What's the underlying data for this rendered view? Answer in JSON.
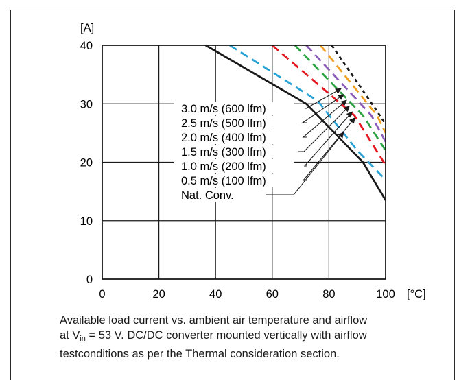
{
  "chart_data": {
    "type": "line",
    "xlabel": "[°C]",
    "ylabel": "[A]",
    "xlim": [
      0,
      100
    ],
    "ylim": [
      0,
      40
    ],
    "x_ticks": [
      "0",
      "20",
      "40",
      "60",
      "80",
      "100"
    ],
    "y_ticks": [
      "0",
      "10",
      "20",
      "30",
      "40"
    ],
    "grid": true,
    "series": [
      {
        "name": "Nat. Conv.",
        "color": "#1a1a1a",
        "dash": "solid",
        "points": [
          [
            36.5,
            40
          ],
          [
            72,
            30
          ],
          [
            92,
            20
          ],
          [
            100,
            13.5
          ]
        ]
      },
      {
        "name": "0.5 m/s (100 lfm)",
        "color": "#29a3d6",
        "dash": "dashed",
        "points": [
          [
            45,
            40
          ],
          [
            76,
            30.5
          ],
          [
            90,
            22
          ],
          [
            100,
            17
          ]
        ]
      },
      {
        "name": "1.0 m/s (200 lfm)",
        "color": "#e4151e",
        "dash": "dashed",
        "points": [
          [
            60,
            40
          ],
          [
            89,
            28
          ],
          [
            100,
            19.5
          ]
        ]
      },
      {
        "name": "1.5 m/s (300 lfm)",
        "color": "#2ca341",
        "dash": "dashed",
        "points": [
          [
            68,
            40
          ],
          [
            92,
            28
          ],
          [
            100,
            22
          ]
        ]
      },
      {
        "name": "2.0 m/s (400 lfm)",
        "color": "#8a5cb8",
        "dash": "dashed",
        "points": [
          [
            72,
            40
          ],
          [
            95,
            28
          ],
          [
            100,
            23.5
          ]
        ]
      },
      {
        "name": "2.5 m/s (500 lfm)",
        "color": "#f0a020",
        "dash": "dashed",
        "points": [
          [
            77,
            40
          ],
          [
            97,
            28
          ],
          [
            100,
            25
          ]
        ]
      },
      {
        "name": "3.0 m/s (600 lfm)",
        "color": "#1a1a1a",
        "dash": "dotted",
        "points": [
          [
            81,
            40
          ],
          [
            98,
            28
          ],
          [
            100,
            26.5
          ]
        ]
      }
    ],
    "legend_labels": [
      "3.0 m/s (600 lfm)",
      "2.5 m/s (500 lfm)",
      "2.0 m/s (400 lfm)",
      "1.5 m/s (300 lfm)",
      "1.0 m/s (200 lfm)",
      "0.5 m/s (100 lfm)",
      "Nat. Conv."
    ],
    "legend_targets": [
      [
        84,
        32.5
      ],
      [
        85,
        31.5
      ],
      [
        86,
        30.5
      ],
      [
        87,
        29.5
      ],
      [
        88,
        28.5
      ],
      [
        89,
        27.5
      ],
      [
        85,
        25
      ]
    ]
  },
  "caption": {
    "line1": "Available load current vs. ambient air temperature and airflow",
    "line2_pre": "at V",
    "line2_sub": "in",
    "line2_post": " = 53 V. DC/DC converter mounted vertically with airflow",
    "line3": "testconditions as per the Thermal consideration section."
  }
}
